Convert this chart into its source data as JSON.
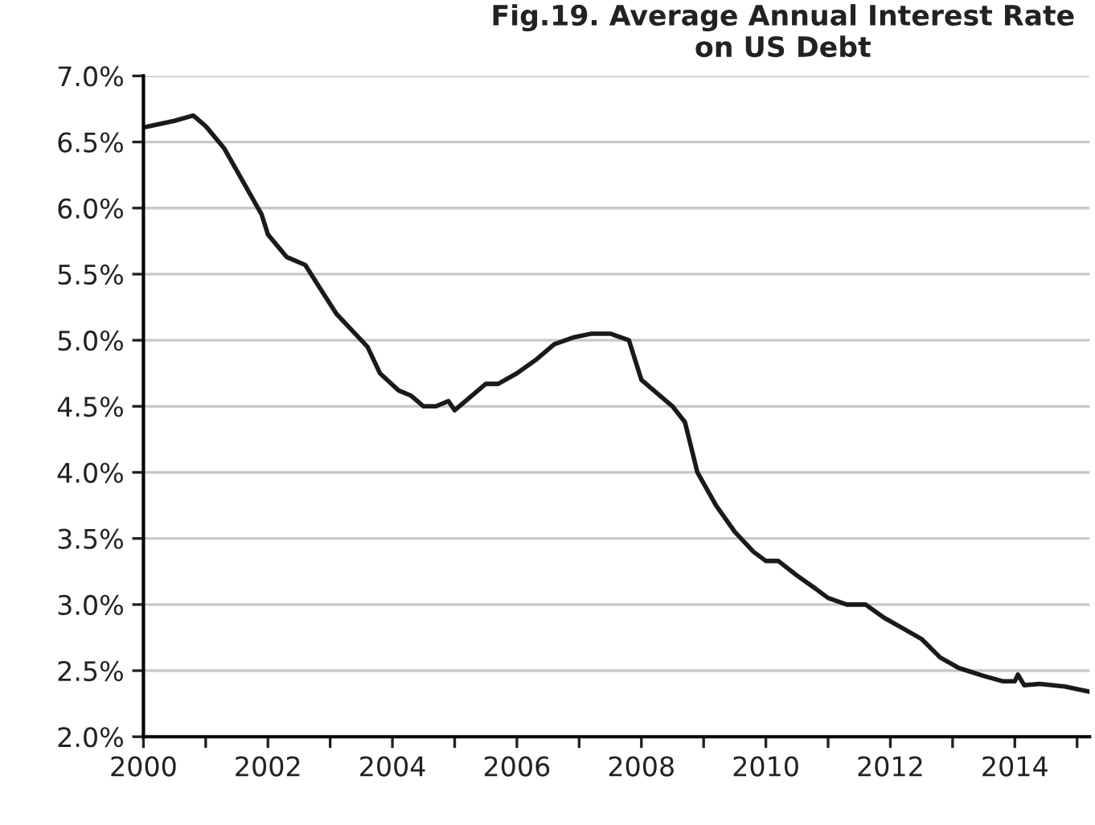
{
  "chart_data": {
    "type": "line",
    "title": "Fig.19. Average Annual Interest Rate on US Debt",
    "x": [
      2000.0,
      2000.5,
      2000.8,
      2001.0,
      2001.3,
      2001.6,
      2001.9,
      2002.0,
      2002.3,
      2002.6,
      2002.8,
      2003.1,
      2003.4,
      2003.6,
      2003.8,
      2004.1,
      2004.3,
      2004.5,
      2004.7,
      2004.9,
      2005.0,
      2005.2,
      2005.5,
      2005.7,
      2006.0,
      2006.3,
      2006.6,
      2006.9,
      2007.2,
      2007.5,
      2007.8,
      2008.0,
      2008.2,
      2008.5,
      2008.7,
      2008.9,
      2009.2,
      2009.5,
      2009.8,
      2010.0,
      2010.2,
      2010.5,
      2010.8,
      2011.0,
      2011.3,
      2011.6,
      2011.9,
      2012.2,
      2012.5,
      2012.8,
      2013.1,
      2013.5,
      2013.8,
      2014.0,
      2014.05,
      2014.15,
      2014.4,
      2014.8,
      2015.2
    ],
    "series": [
      {
        "color": "#1a1a1a",
        "values": [
          6.61,
          6.66,
          6.7,
          6.62,
          6.45,
          6.2,
          5.95,
          5.8,
          5.63,
          5.57,
          5.42,
          5.2,
          5.05,
          4.95,
          4.75,
          4.62,
          4.58,
          4.5,
          4.5,
          4.54,
          4.47,
          4.55,
          4.67,
          4.67,
          4.75,
          4.85,
          4.97,
          5.02,
          5.05,
          5.05,
          5.0,
          4.7,
          4.62,
          4.5,
          4.38,
          4.0,
          3.75,
          3.55,
          3.4,
          3.33,
          3.33,
          3.22,
          3.12,
          3.05,
          3.0,
          3.0,
          2.9,
          2.82,
          2.74,
          2.6,
          2.52,
          2.46,
          2.42,
          2.42,
          2.47,
          2.39,
          2.4,
          2.38,
          2.34
        ]
      }
    ],
    "xlim": [
      2000,
      2015.2
    ],
    "xticks": [
      2000,
      {
        "value": 2001,
        "label": null
      },
      2002,
      {
        "value": 2003,
        "label": null
      },
      2004,
      {
        "value": 2005,
        "label": null
      },
      2006,
      {
        "value": 2007,
        "label": null
      },
      2008,
      {
        "value": 2009,
        "label": null
      },
      2010,
      {
        "value": 2011,
        "label": null
      },
      2012,
      {
        "value": 2013,
        "label": null
      },
      2014,
      {
        "value": 2015,
        "label": null
      }
    ],
    "ylim": [
      2.0,
      7.0
    ],
    "yticks": [
      {
        "value": 2.0,
        "label": "2.0%"
      },
      {
        "value": 2.5,
        "label": "2.5%"
      },
      {
        "value": 3.0,
        "label": "3.0%"
      },
      {
        "value": 3.5,
        "label": "3.5%"
      },
      {
        "value": 4.0,
        "label": "4.0%"
      },
      {
        "value": 4.5,
        "label": "4.5%"
      },
      {
        "value": 5.0,
        "label": "5.0%"
      },
      {
        "value": 5.5,
        "label": "5.5%"
      },
      {
        "value": 6.0,
        "label": "6.0%"
      },
      {
        "value": 6.5,
        "label": "6.5%"
      },
      {
        "value": 7.0,
        "label": "7.0%"
      }
    ],
    "grid": "y",
    "legend": false,
    "marker": "none",
    "line_style": "solid"
  }
}
